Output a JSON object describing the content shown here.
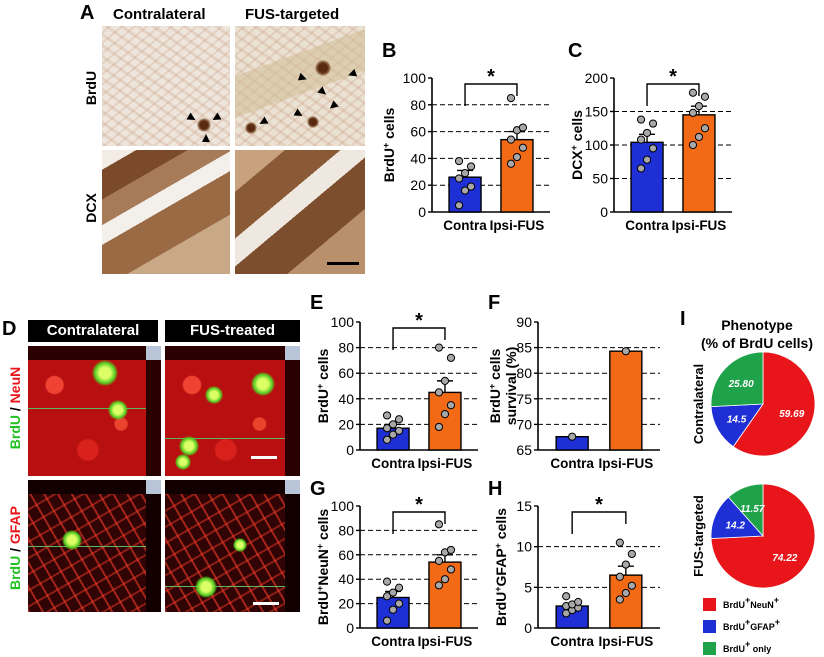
{
  "panel_labels": {
    "A": "A",
    "B": "B",
    "C": "C",
    "D": "D",
    "E": "E",
    "F": "F",
    "G": "G",
    "H": "H",
    "I": "I"
  },
  "panel_a": {
    "col_left": "Contralateral",
    "col_right": "FUS-targeted",
    "row_top": "BrdU",
    "row_bottom": "DCX"
  },
  "panel_d": {
    "col_left": "Contralateral",
    "col_right": "FUS-treated",
    "row_top_a": "BrdU",
    "row_top_sep": " / ",
    "row_top_b": "NeuN",
    "row_bottom_a": "BrdU",
    "row_bottom_sep": " / ",
    "row_bottom_b": "GFAP"
  },
  "significance_mark": "*",
  "colors": {
    "contra": "#1f2fd6",
    "ipsi": "#f26a16",
    "neun": "#e8161b",
    "gfap": "#1f2fd6",
    "only": "#1fa34a",
    "green_text": "#22c022",
    "red_text": "#e8161b"
  },
  "chart_data": [
    {
      "id": "B",
      "type": "bar",
      "ylabel_pre": "BrdU",
      "ylabel_sup": "+",
      "ylabel_post": " cells",
      "categories": [
        "Contra",
        "Ipsi-FUS"
      ],
      "values": [
        26,
        54
      ],
      "errors": [
        5,
        6
      ],
      "ylim": [
        0,
        100
      ],
      "yticks": [
        0,
        20,
        40,
        60,
        80,
        100
      ],
      "grid_lines": [
        20,
        40,
        60,
        80
      ],
      "points": [
        [
          5,
          16,
          19,
          25,
          29,
          34,
          38
        ],
        [
          36,
          41,
          48,
          54,
          61,
          63,
          85
        ]
      ],
      "significant": true
    },
    {
      "id": "C",
      "type": "bar",
      "ylabel_pre": "DCX",
      "ylabel_sup": "+",
      "ylabel_post": " cells",
      "categories": [
        "Contra",
        "Ipsi-FUS"
      ],
      "values": [
        104,
        145
      ],
      "errors": [
        12,
        13
      ],
      "ylim": [
        0,
        200
      ],
      "yticks": [
        0,
        50,
        100,
        150,
        200
      ],
      "grid_lines": [
        50,
        100,
        150
      ],
      "points": [
        [
          65,
          78,
          95,
          108,
          118,
          132,
          138
        ],
        [
          100,
          112,
          125,
          148,
          158,
          172,
          178
        ]
      ],
      "significant": true
    },
    {
      "id": "E",
      "type": "bar",
      "ylabel_pre": "BrdU",
      "ylabel_sup": "+",
      "ylabel_post": " cells",
      "categories": [
        "Contra",
        "Ipsi-FUS"
      ],
      "values": [
        17,
        45
      ],
      "errors": [
        3,
        9
      ],
      "ylim": [
        0,
        100
      ],
      "yticks": [
        0,
        20,
        40,
        60,
        80,
        100
      ],
      "grid_lines": [
        20,
        40,
        60,
        80
      ],
      "points": [
        [
          8,
          12,
          15,
          17,
          20,
          24,
          27
        ],
        [
          18,
          28,
          35,
          45,
          54,
          72,
          80
        ]
      ],
      "significant": true
    },
    {
      "id": "F",
      "type": "bar",
      "ylabel_line1_pre": "BrdU",
      "ylabel_line1_sup": "+",
      "ylabel_line1_post": " cells",
      "ylabel_line2": "survival (%)",
      "categories": [
        "Contra",
        "Ipsi-FUS"
      ],
      "values": [
        67.6,
        84.3
      ],
      "errors": [
        0,
        0
      ],
      "ylim": [
        65,
        90
      ],
      "yticks": [
        65,
        70,
        75,
        80,
        85,
        90
      ],
      "grid_lines": [
        70,
        75,
        80,
        85
      ],
      "points": [
        [
          67.6
        ],
        [
          84.3
        ]
      ],
      "significant": false
    },
    {
      "id": "G",
      "type": "bar",
      "ylabel_a": "BrdU",
      "ylabel_a_sup": "+",
      "ylabel_b": "NeuN",
      "ylabel_b_sup": "+",
      "ylabel_post": " cells",
      "categories": [
        "Contra",
        "Ipsi-FUS"
      ],
      "values": [
        25,
        54
      ],
      "errors": [
        5,
        6
      ],
      "ylim": [
        0,
        100
      ],
      "yticks": [
        0,
        20,
        40,
        60,
        80,
        100
      ],
      "grid_lines": [
        20,
        40,
        60,
        80
      ],
      "points": [
        [
          6,
          15,
          20,
          26,
          29,
          33,
          38
        ],
        [
          35,
          40,
          48,
          55,
          62,
          64,
          85
        ]
      ],
      "significant": true
    },
    {
      "id": "H",
      "type": "bar",
      "ylabel_a": "BrdU",
      "ylabel_a_sup": "+",
      "ylabel_b": "GFAP",
      "ylabel_b_sup": "+",
      "ylabel_post": " cells",
      "categories": [
        "Contra",
        "Ipsi-FUS"
      ],
      "values": [
        2.7,
        6.5
      ],
      "errors": [
        0.3,
        1.1
      ],
      "ylim": [
        0,
        15
      ],
      "yticks": [
        0,
        5,
        10,
        15
      ],
      "grid_lines": [
        5,
        10
      ],
      "points": [
        [
          1.8,
          2.2,
          2.5,
          2.7,
          2.9,
          3.2,
          3.9
        ],
        [
          3.5,
          4.3,
          5.2,
          6.3,
          7.8,
          9.1,
          10.5
        ]
      ],
      "significant": true
    },
    {
      "id": "I",
      "type": "pie",
      "title_line1": "Phenotype",
      "title_line2": "(% of BrdU cells)",
      "pies": [
        {
          "label": "Contralateral",
          "slices": [
            {
              "name": "NeuN",
              "value": 59.69,
              "label": "59.69"
            },
            {
              "name": "GFAP",
              "value": 14.5,
              "label": "14.5"
            },
            {
              "name": "only",
              "value": 25.8,
              "label": "25.80"
            }
          ]
        },
        {
          "label": "FUS-targeted",
          "slices": [
            {
              "name": "NeuN",
              "value": 74.22,
              "label": "74.22"
            },
            {
              "name": "GFAP",
              "value": 14.2,
              "label": "14.2"
            },
            {
              "name": "only",
              "value": 11.57,
              "label": "11.57"
            }
          ]
        }
      ],
      "legend": [
        {
          "key": "NeuN",
          "pre": "BrdU",
          "pre_sup": "+",
          "mid": "NeuN",
          "mid_sup": "+"
        },
        {
          "key": "GFAP",
          "pre": "BrdU",
          "pre_sup": "+",
          "mid": "GFAP",
          "mid_sup": "+"
        },
        {
          "key": "only",
          "pre": "BrdU",
          "pre_sup": "+",
          "mid": " only",
          "mid_sup": ""
        }
      ]
    }
  ]
}
